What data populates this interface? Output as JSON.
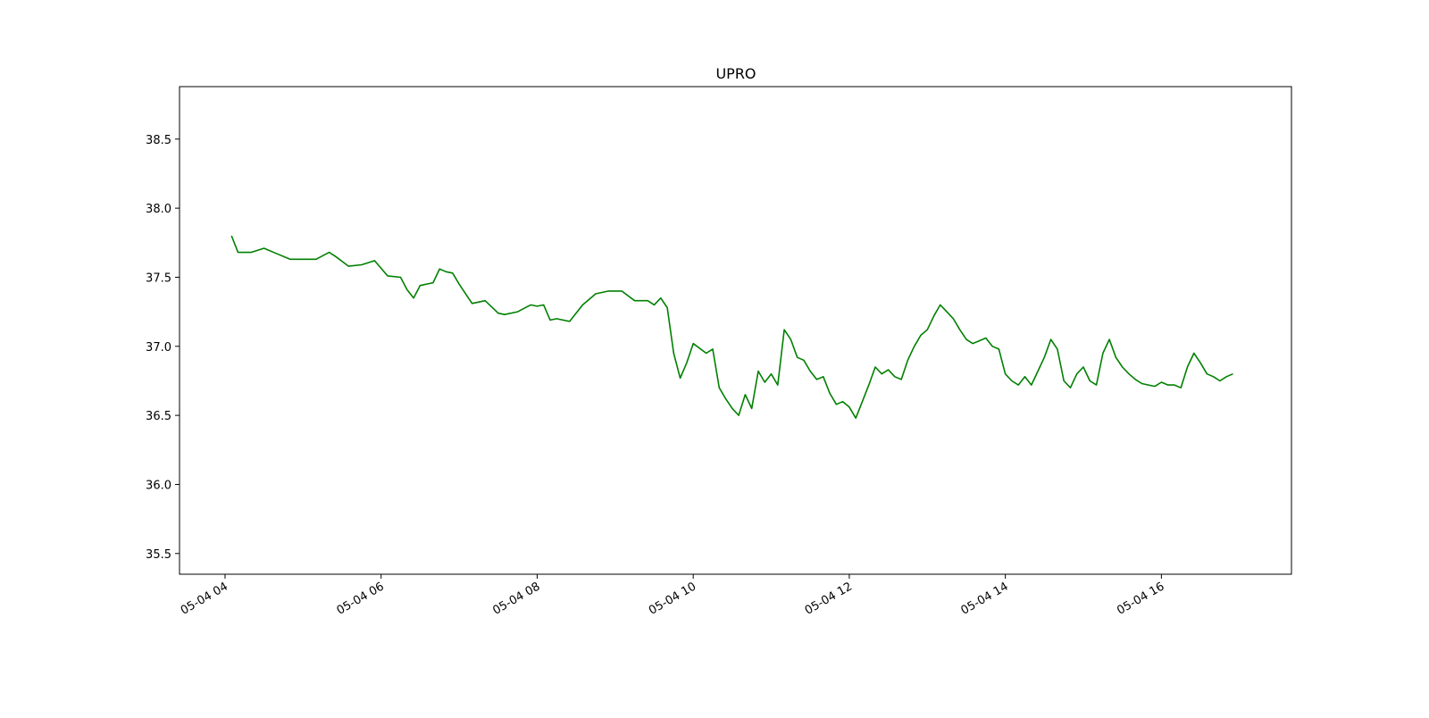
{
  "chart_data": {
    "type": "line",
    "title": "UPRO",
    "xlabel": "",
    "ylabel": "",
    "grid": false,
    "x_ticks": [
      "05-04 04",
      "05-04 06",
      "05-04 08",
      "05-04 10",
      "05-04 12",
      "05-04 14",
      "05-04 16"
    ],
    "y_ticks": [
      "35.5",
      "36.0",
      "36.5",
      "37.0",
      "37.5",
      "38.0",
      "38.5"
    ],
    "xlim": [
      "05-04 03:25",
      "05-04 17:40"
    ],
    "ylim": [
      35.35,
      38.88
    ],
    "line_color": "#008000",
    "series": [
      {
        "x": [
          "05-04 04:05",
          "05-04 04:10",
          "05-04 04:15",
          "05-04 04:20",
          "05-04 04:30",
          "05-04 04:40",
          "05-04 04:50",
          "05-04 05:00",
          "05-04 05:10",
          "05-04 05:20",
          "05-04 05:25",
          "05-04 05:35",
          "05-04 05:45",
          "05-04 05:55",
          "05-04 06:05",
          "05-04 06:15",
          "05-04 06:20",
          "05-04 06:25",
          "05-04 06:30",
          "05-04 06:40",
          "05-04 06:45",
          "05-04 06:50",
          "05-04 06:55",
          "05-04 07:00",
          "05-04 07:10",
          "05-04 07:20",
          "05-04 07:30",
          "05-04 07:35",
          "05-04 07:45",
          "05-04 07:55",
          "05-04 08:00",
          "05-04 08:05",
          "05-04 08:10",
          "05-04 08:15",
          "05-04 08:25",
          "05-04 08:35",
          "05-04 08:45",
          "05-04 08:55",
          "05-04 09:05",
          "05-04 09:15",
          "05-04 09:25",
          "05-04 09:30",
          "05-04 09:35",
          "05-04 09:40",
          "05-04 09:45",
          "05-04 09:50",
          "05-04 09:55",
          "05-04 10:00",
          "05-04 10:10",
          "05-04 10:15",
          "05-04 10:20",
          "05-04 10:25",
          "05-04 10:30",
          "05-04 10:35",
          "05-04 10:40",
          "05-04 10:45",
          "05-04 10:50",
          "05-04 10:55",
          "05-04 11:00",
          "05-04 11:05",
          "05-04 11:10",
          "05-04 11:15",
          "05-04 11:20",
          "05-04 11:25",
          "05-04 11:30",
          "05-04 11:35",
          "05-04 11:40",
          "05-04 11:45",
          "05-04 11:50",
          "05-04 11:55",
          "05-04 12:00",
          "05-04 12:05",
          "05-04 12:10",
          "05-04 12:15",
          "05-04 12:20",
          "05-04 12:25",
          "05-04 12:30",
          "05-04 12:35",
          "05-04 12:40",
          "05-04 12:45",
          "05-04 12:50",
          "05-04 12:55",
          "05-04 13:00",
          "05-04 13:05",
          "05-04 13:10",
          "05-04 13:15",
          "05-04 13:20",
          "05-04 13:25",
          "05-04 13:30",
          "05-04 13:35",
          "05-04 13:40",
          "05-04 13:45",
          "05-04 13:50",
          "05-04 13:55",
          "05-04 14:00",
          "05-04 14:05",
          "05-04 14:10",
          "05-04 14:15",
          "05-04 14:20",
          "05-04 14:25",
          "05-04 14:30",
          "05-04 14:35",
          "05-04 14:40",
          "05-04 14:45",
          "05-04 14:50",
          "05-04 14:55",
          "05-04 15:00",
          "05-04 15:05",
          "05-04 15:10",
          "05-04 15:15",
          "05-04 15:20",
          "05-04 15:25",
          "05-04 15:30",
          "05-04 15:35",
          "05-04 15:40",
          "05-04 15:45",
          "05-04 15:50",
          "05-04 15:55",
          "05-04 16:00",
          "05-04 16:05",
          "05-04 16:10",
          "05-04 16:15",
          "05-04 16:20",
          "05-04 16:25",
          "05-04 16:30",
          "05-04 16:35",
          "05-04 16:40",
          "05-04 16:45",
          "05-04 16:50",
          "05-04 16:55"
        ],
        "y": [
          37.8,
          37.68,
          37.68,
          37.68,
          37.71,
          37.67,
          37.63,
          37.63,
          37.63,
          37.68,
          37.65,
          37.58,
          37.59,
          37.62,
          37.51,
          37.5,
          37.41,
          37.35,
          37.44,
          37.46,
          37.56,
          37.54,
          37.53,
          37.45,
          37.31,
          37.33,
          37.24,
          37.23,
          37.25,
          37.3,
          37.29,
          37.3,
          37.19,
          37.2,
          37.18,
          37.3,
          37.38,
          37.4,
          37.4,
          37.33,
          37.33,
          37.3,
          37.35,
          37.28,
          36.95,
          36.77,
          36.88,
          37.02,
          36.95,
          36.98,
          36.7,
          36.62,
          36.55,
          36.5,
          36.65,
          36.55,
          36.82,
          36.74,
          36.8,
          36.72,
          37.12,
          37.05,
          36.92,
          36.9,
          36.82,
          36.76,
          36.78,
          36.66,
          36.58,
          36.6,
          36.56,
          36.48,
          36.6,
          36.72,
          36.85,
          36.8,
          36.83,
          36.78,
          36.76,
          36.9,
          37.0,
          37.08,
          37.12,
          37.22,
          37.3,
          37.25,
          37.2,
          37.12,
          37.05,
          37.02,
          37.04,
          37.06,
          37.0,
          36.98,
          36.8,
          36.75,
          36.72,
          36.78,
          36.72,
          36.82,
          36.92,
          37.05,
          36.98,
          36.75,
          36.7,
          36.8,
          36.85,
          36.75,
          36.72,
          36.95,
          37.05,
          36.92,
          36.85,
          36.8,
          36.76,
          36.73,
          36.72,
          36.71,
          36.74,
          36.72,
          36.72,
          36.7,
          36.85,
          36.95,
          36.88,
          36.8,
          36.78,
          36.75,
          36.78,
          36.8
        ]
      }
    ]
  }
}
